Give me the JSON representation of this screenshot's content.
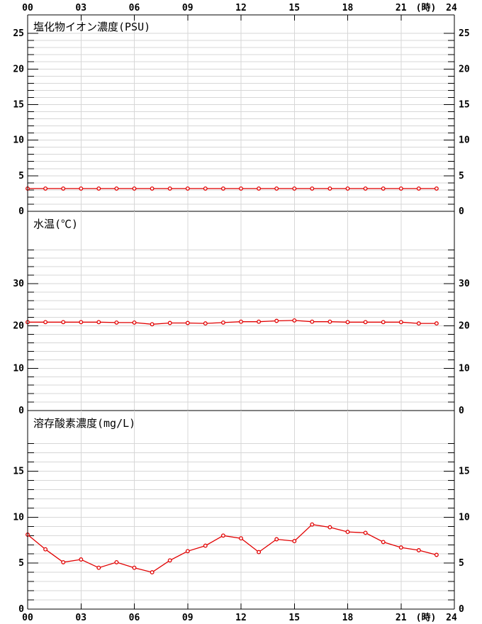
{
  "chart": {
    "x_axis": {
      "range": [
        0,
        24
      ],
      "tick_hours": [
        0,
        3,
        6,
        9,
        12,
        15,
        18,
        21,
        24
      ],
      "tick_labels": [
        "00",
        "03",
        "06",
        "09",
        "12",
        "15",
        "18",
        "21",
        "24"
      ],
      "unit_label": "(時)",
      "gridline_hours": [
        3,
        6,
        9,
        12,
        15,
        18,
        21
      ],
      "labels_position": "top-and-bottom"
    },
    "colors": {
      "series": "#e10000",
      "marker_fill": "#ffffff",
      "grid": "#d7d7d7",
      "axis": "#000000",
      "text": "#000000",
      "background": "#ffffff"
    },
    "chart_data": [
      {
        "type": "line",
        "title": "塩化物イオン濃度(PSU)",
        "legend": "none",
        "marker": "open-circle",
        "grid": true,
        "x": [
          0,
          1,
          2,
          3,
          4,
          5,
          6,
          7,
          8,
          9,
          10,
          11,
          12,
          13,
          14,
          15,
          16,
          17,
          18,
          19,
          20,
          21,
          22,
          23
        ],
        "values": [
          3.2,
          3.2,
          3.2,
          3.2,
          3.2,
          3.2,
          3.2,
          3.2,
          3.2,
          3.2,
          3.2,
          3.2,
          3.2,
          3.2,
          3.2,
          3.2,
          3.2,
          3.2,
          3.2,
          3.2,
          3.2,
          3.2,
          3.2,
          3.2
        ],
        "ylim": [
          0,
          27.6
        ],
        "yticks_labeled": [
          0,
          5,
          10,
          15,
          20,
          25
        ],
        "ytick_minor_step": 1,
        "ytick_minor_max": 25
      },
      {
        "type": "line",
        "title": "水温(℃)",
        "legend": "none",
        "marker": "open-circle",
        "grid": true,
        "x": [
          0,
          1,
          2,
          3,
          4,
          5,
          6,
          7,
          8,
          9,
          10,
          11,
          12,
          13,
          14,
          15,
          16,
          17,
          18,
          19,
          20,
          21,
          22,
          23
        ],
        "values": [
          20.9,
          20.9,
          20.9,
          20.9,
          20.9,
          20.8,
          20.8,
          20.4,
          20.7,
          20.7,
          20.6,
          20.8,
          21.0,
          21.0,
          21.2,
          21.3,
          21.0,
          21.0,
          20.9,
          20.9,
          20.9,
          20.9,
          20.6,
          20.6
        ],
        "ylim": [
          0,
          47.1
        ],
        "yticks_labeled": [
          0,
          10,
          20,
          30
        ],
        "ytick_minor_step": 2,
        "ytick_minor_max": 38
      },
      {
        "type": "line",
        "title": "溶存酸素濃度(mg/L)",
        "legend": "none",
        "marker": "open-circle",
        "grid": true,
        "x": [
          0,
          1,
          2,
          3,
          4,
          5,
          6,
          7,
          8,
          9,
          10,
          11,
          12,
          13,
          14,
          15,
          16,
          17,
          18,
          19,
          20,
          21,
          22,
          23
        ],
        "values": [
          8.1,
          6.5,
          5.1,
          5.4,
          4.5,
          5.1,
          4.5,
          4.0,
          5.3,
          6.3,
          6.9,
          8.0,
          7.7,
          6.2,
          7.6,
          7.4,
          9.2,
          8.9,
          8.4,
          8.3,
          7.3,
          6.7,
          6.4,
          5.9
        ],
        "ylim": [
          0,
          21.6
        ],
        "yticks_labeled": [
          0,
          5,
          10,
          15
        ],
        "ytick_minor_step": 1,
        "ytick_minor_max": 18
      }
    ]
  }
}
